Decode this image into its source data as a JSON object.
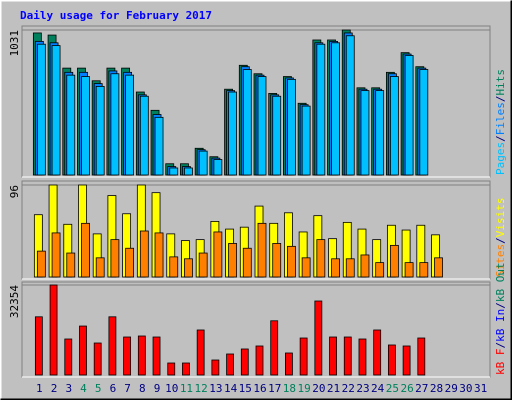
{
  "chart_data": [
    {
      "type": "bar",
      "title": "Daily usage for February 2017",
      "legend_separator": "/",
      "ylim": [
        0,
        1031
      ],
      "yticks": [
        1031
      ],
      "series": [
        {
          "name": "Pages",
          "color": "#00c0ff",
          "values": [
            930,
            920,
            710,
            700,
            630,
            720,
            710,
            560,
            410,
            50,
            50,
            170,
            110,
            590,
            750,
            700,
            560,
            680,
            490,
            930,
            940,
            990,
            600,
            600,
            700,
            850,
            750,
            null,
            null,
            null,
            null
          ]
        },
        {
          "name": "Files",
          "color": "#0080ff",
          "values": [
            950,
            940,
            730,
            730,
            650,
            740,
            730,
            570,
            430,
            60,
            60,
            180,
            120,
            600,
            770,
            710,
            570,
            690,
            500,
            940,
            950,
            1010,
            610,
            610,
            720,
            860,
            760,
            null,
            null,
            null,
            null
          ]
        },
        {
          "name": "Hits",
          "color": "#00805c",
          "values": [
            1010,
            995,
            760,
            760,
            670,
            760,
            760,
            590,
            460,
            80,
            80,
            190,
            130,
            610,
            780,
            720,
            580,
            700,
            510,
            960,
            960,
            1031,
            620,
            620,
            730,
            870,
            770,
            null,
            null,
            null,
            null
          ]
        }
      ]
    },
    {
      "type": "bar",
      "ylim": [
        0,
        96
      ],
      "yticks": [
        96
      ],
      "series": [
        {
          "name": "Sites",
          "color": "#ff8000",
          "values": [
            27,
            46,
            25,
            56,
            20,
            39,
            30,
            48,
            46,
            21,
            19,
            25,
            47,
            35,
            30,
            56,
            35,
            32,
            20,
            39,
            19,
            19,
            23,
            15,
            33,
            15,
            15,
            20,
            null,
            null,
            null
          ]
        },
        {
          "name": "Visits",
          "color": "#ffff00",
          "values": [
            65,
            96,
            55,
            96,
            45,
            85,
            66,
            96,
            88,
            45,
            38,
            39,
            58,
            50,
            52,
            74,
            56,
            67,
            47,
            64,
            40,
            57,
            50,
            39,
            54,
            49,
            54,
            44,
            null,
            null,
            null
          ]
        }
      ]
    },
    {
      "type": "bar",
      "ylim": [
        0,
        32354
      ],
      "yticks": [
        32354
      ],
      "categories": [
        "1",
        "2",
        "3",
        "4",
        "5",
        "6",
        "7",
        "8",
        "9",
        "10",
        "11",
        "12",
        "13",
        "14",
        "15",
        "16",
        "17",
        "18",
        "19",
        "20",
        "21",
        "22",
        "23",
        "24",
        "25",
        "26",
        "27",
        "28",
        "29",
        "30",
        "31"
      ],
      "category_colors": [
        "#000080",
        "#000080",
        "#000080",
        "#00805c",
        "#00805c",
        "#000080",
        "#000080",
        "#000080",
        "#000080",
        "#000080",
        "#00805c",
        "#00805c",
        "#000080",
        "#000080",
        "#000080",
        "#000080",
        "#000080",
        "#00805c",
        "#00805c",
        "#000080",
        "#000080",
        "#000080",
        "#000080",
        "#000080",
        "#00805c",
        "#00805c",
        "#000080",
        "#000080",
        "#000080",
        "#000080",
        "#000080"
      ],
      "series": [
        {
          "name": "kB F",
          "color": "#ff0000",
          "values": [
            20920,
            32354,
            12940,
            17600,
            11500,
            20920,
            13660,
            14020,
            13660,
            4310,
            4310,
            16180,
            5390,
            7550,
            9350,
            10430,
            19490,
            7910,
            13300,
            26600,
            13660,
            13660,
            12940,
            16180,
            10790,
            10430,
            13300,
            null,
            null,
            null,
            null
          ]
        },
        {
          "name": "kB In",
          "color": "#0000ff",
          "values": [
            null,
            null,
            null,
            null,
            null,
            null,
            null,
            null,
            null,
            null,
            null,
            null,
            null,
            null,
            null,
            null,
            null,
            null,
            null,
            null,
            null,
            null,
            null,
            null,
            null,
            null,
            null,
            null,
            null,
            null,
            null
          ]
        },
        {
          "name": "kB Out",
          "color": "#00805c",
          "values": [
            null,
            null,
            null,
            null,
            null,
            null,
            null,
            null,
            null,
            null,
            null,
            null,
            null,
            null,
            null,
            null,
            null,
            null,
            null,
            null,
            null,
            null,
            null,
            null,
            null,
            null,
            null,
            null,
            null,
            null,
            null
          ]
        }
      ]
    }
  ]
}
